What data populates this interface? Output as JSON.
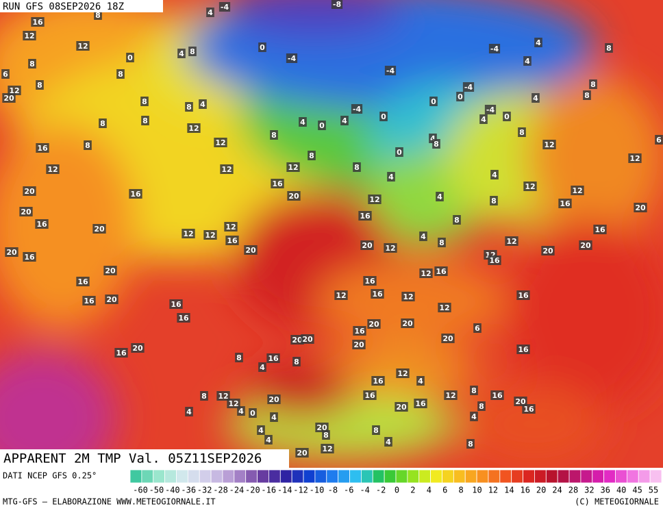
{
  "header": {
    "run": "RUN GFS 08SEP2026 18Z"
  },
  "map": {
    "title": "APPARENT 2M TMP Val. 05Z11SEP2026",
    "labels": [
      16,
      8,
      4,
      -4,
      -8,
      12,
      12,
      0,
      4,
      8,
      0,
      -4,
      8,
      -4,
      4,
      8,
      8,
      6,
      -4,
      4,
      8,
      12,
      20,
      -4,
      8,
      8,
      8,
      4,
      0,
      0,
      8,
      4,
      -4,
      -4,
      0,
      4,
      0,
      4,
      0,
      4,
      8,
      8,
      12,
      8,
      4,
      8,
      8,
      6,
      16,
      8,
      12,
      12,
      0,
      8,
      12,
      12,
      12,
      12,
      8,
      4,
      4,
      16,
      12,
      12,
      20,
      16,
      20,
      12,
      4,
      8,
      16,
      20,
      20,
      16,
      8,
      16,
      20,
      12,
      12,
      12,
      16,
      16,
      4,
      8,
      12,
      20,
      20,
      16,
      20,
      20,
      12,
      12,
      16,
      20,
      20,
      16,
      12,
      16,
      16,
      12,
      16,
      12,
      16,
      16,
      20,
      16,
      12,
      16,
      20,
      20,
      6,
      16,
      20,
      20,
      20,
      20,
      20,
      16,
      16,
      8,
      16,
      8,
      4,
      16,
      12,
      4,
      8,
      12,
      16,
      20,
      12,
      8,
      16,
      16,
      20,
      8,
      20,
      16,
      12,
      4,
      4,
      0,
      4,
      4,
      20,
      8,
      8,
      4,
      4,
      8,
      4,
      20,
      12
    ]
  },
  "legend": {
    "source": "DATI NCEP GFS 0.25°",
    "ticks": [
      -60,
      -50,
      -40,
      -36,
      -32,
      -28,
      -24,
      -20,
      -16,
      -14,
      -12,
      -10,
      -8,
      -6,
      -4,
      -2,
      0,
      2,
      4,
      6,
      8,
      10,
      12,
      14,
      16,
      20,
      24,
      28,
      32,
      36,
      40,
      45,
      55
    ]
  },
  "footer": {
    "left": "MTG-GFS — ELABORAZIONE WWW.METEOGIORNALE.IT",
    "right": "(C) METEOGIORNALE"
  }
}
